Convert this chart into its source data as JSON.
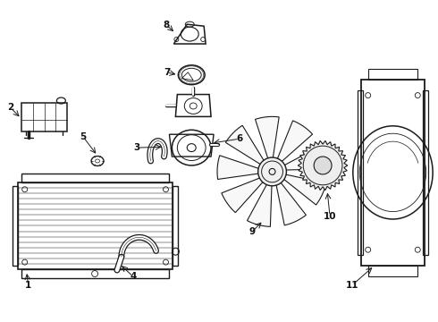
{
  "bg_color": "#ffffff",
  "line_color": "#1a1a1a",
  "lw": 0.9,
  "fig_width": 4.9,
  "fig_height": 3.6,
  "dpi": 100
}
